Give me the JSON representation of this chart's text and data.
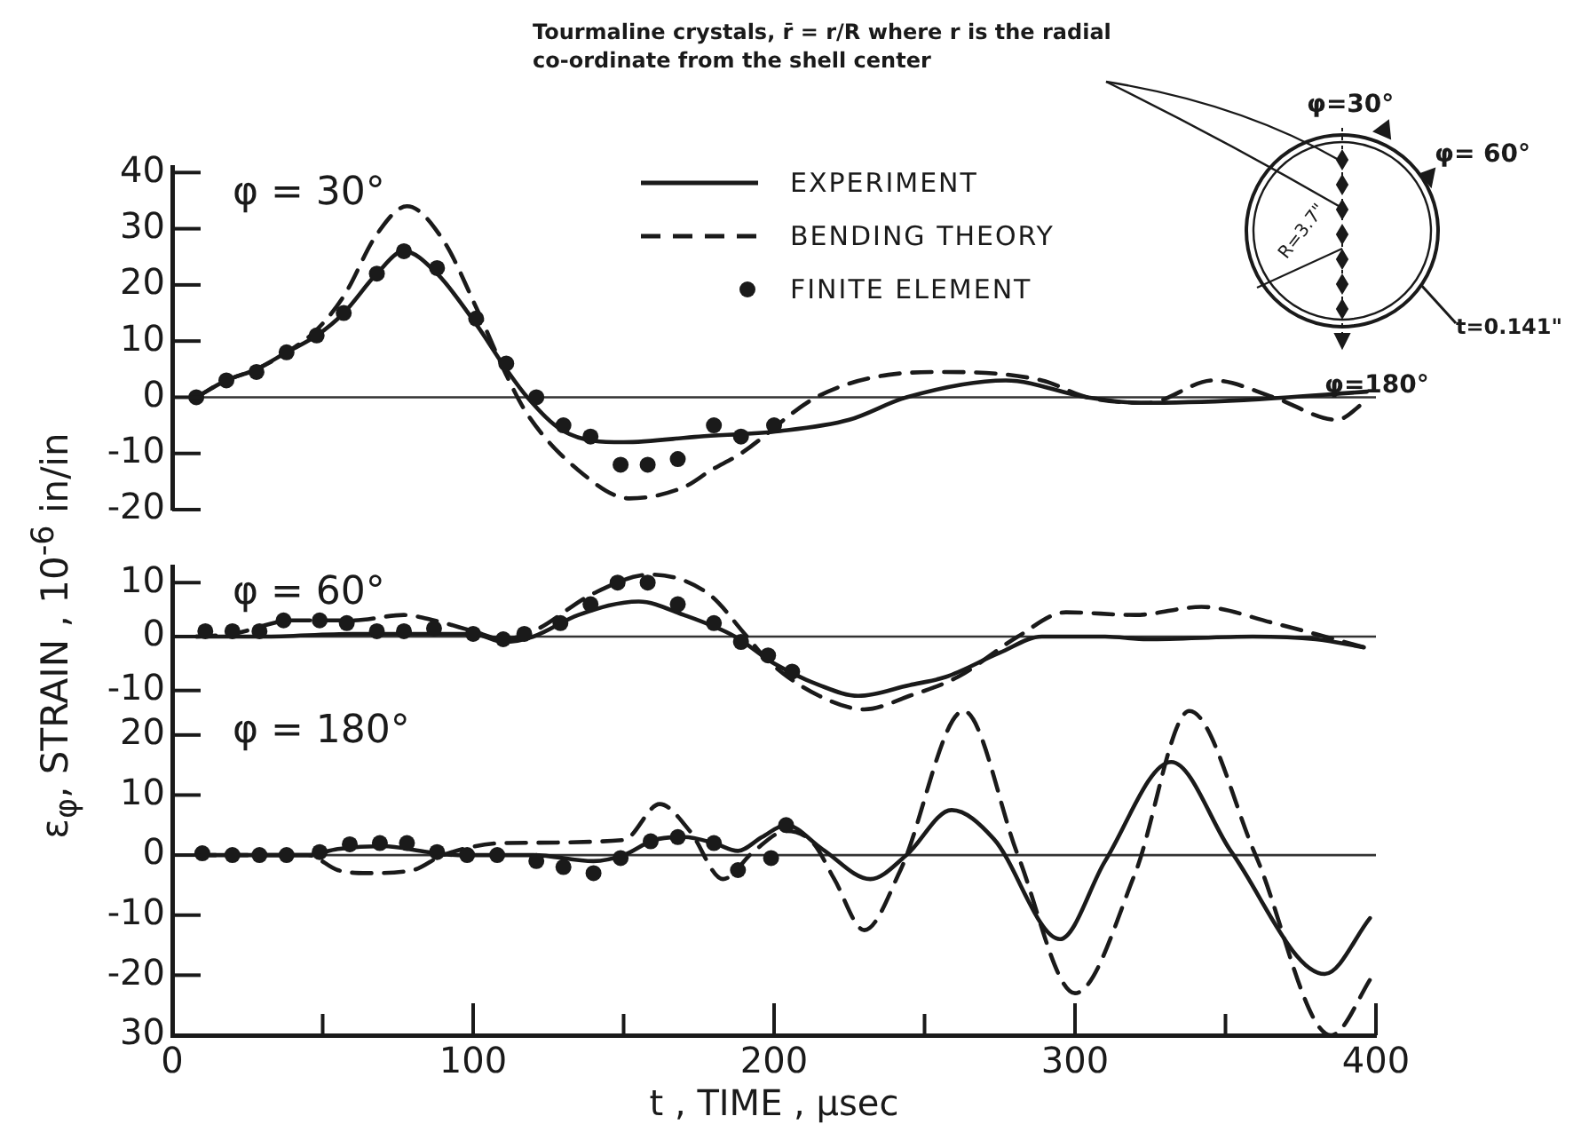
{
  "chart_data": [
    {
      "type": "line",
      "title": "φ = 30°",
      "xlim": [
        0,
        400
      ],
      "ylim": [
        -20,
        41
      ],
      "yticks": [
        40,
        30,
        20,
        10,
        0,
        -10,
        -20
      ],
      "tick_labels": "y",
      "legend": "top",
      "ref_lines": [
        {
          "axis": "y",
          "value": 0
        }
      ],
      "series": [
        {
          "name": "EXPERIMENT",
          "type": "line",
          "line_style": "solid",
          "color": "#1a1a1a",
          "x": [
            8,
            18,
            28,
            38,
            48,
            57,
            68,
            77,
            88,
            101,
            111,
            118,
            130,
            150,
            175,
            202,
            225,
            244,
            277,
            304,
            322,
            356,
            397
          ],
          "values": [
            0,
            3,
            5,
            8,
            11,
            15,
            22,
            26,
            22,
            13,
            5,
            0,
            -6,
            -8,
            -7,
            -6,
            -4,
            0,
            3,
            0,
            -1,
            -0.5,
            1
          ]
        },
        {
          "name": "BENDING THEORY",
          "type": "line",
          "line_style": "dashed",
          "color": "#1a1a1a",
          "x": [
            8,
            18,
            28,
            38,
            48,
            57,
            68,
            78,
            90,
            101,
            111,
            118,
            135,
            152,
            170,
            179,
            189,
            214,
            238,
            257,
            289,
            304,
            324,
            346,
            366,
            387,
            397
          ],
          "values": [
            0,
            3,
            5,
            8,
            12,
            18,
            29,
            34,
            28,
            16,
            4,
            -3,
            -13,
            -18,
            -16,
            -13,
            -10,
            0,
            4,
            4.5,
            3,
            0,
            -1,
            3,
            0,
            -4,
            -0.5
          ]
        },
        {
          "name": "FINITE ELEMENT",
          "type": "scatter",
          "marker": "circle",
          "color": "#1a1a1a",
          "x": [
            8,
            18,
            28,
            38,
            48,
            57,
            68,
            77,
            88,
            101,
            111,
            121,
            130,
            139,
            149,
            158,
            168,
            180,
            189,
            200
          ],
          "values": [
            0,
            3,
            4.5,
            8,
            11,
            15,
            22,
            26,
            23,
            14,
            6,
            0,
            -5,
            -7,
            -12,
            -12,
            -11,
            -5,
            -7,
            -5
          ]
        }
      ]
    },
    {
      "type": "line",
      "title": "φ = 60°",
      "ylabel": "ε$_{φ}$, STRAIN , 10$^{-6}$ in/in",
      "xlim": [
        0,
        400
      ],
      "ylim": [
        -14,
        13
      ],
      "yticks": [
        10,
        0,
        -10
      ],
      "tick_labels": "y",
      "ref_lines": [
        {
          "axis": "y",
          "value": 0
        }
      ],
      "series": [
        {
          "type": "line",
          "line_style": "solid",
          "color": "#1a1a1a",
          "x": [
            8,
            30,
            60,
            90,
            100,
            110,
            120,
            135,
            155,
            170,
            187,
            200,
            215,
            228,
            245,
            257,
            275,
            289,
            310,
            324,
            359,
            380,
            396
          ],
          "values": [
            0,
            0,
            0.5,
            0.5,
            0.5,
            -1,
            0,
            4,
            6.5,
            4,
            0,
            -5,
            -9,
            -11,
            -9,
            -7.5,
            -3,
            0,
            0,
            -0.5,
            0,
            -0.5,
            -2
          ]
        },
        {
          "type": "line",
          "line_style": "dashed",
          "color": "#1a1a1a",
          "x": [
            8,
            20,
            40,
            60,
            77,
            87,
            100,
            110,
            120,
            140,
            159,
            178,
            191,
            198,
            215,
            230,
            245,
            261,
            281,
            297,
            320,
            342,
            366,
            383,
            396
          ],
          "values": [
            0,
            0.5,
            3,
            3,
            4,
            3,
            1,
            -0.5,
            1,
            8,
            11.5,
            8,
            0,
            -4.5,
            -11,
            -13.5,
            -11,
            -7.5,
            0,
            4.5,
            4,
            5.5,
            2.5,
            0,
            -2
          ]
        },
        {
          "type": "scatter",
          "marker": "circle",
          "color": "#1a1a1a",
          "x": [
            11,
            20,
            29,
            37,
            49,
            58,
            68,
            77,
            87,
            100,
            110,
            117,
            129,
            139,
            148,
            158,
            168,
            180,
            189,
            198,
            206
          ],
          "values": [
            1,
            1,
            1,
            3,
            3,
            2.5,
            1,
            1,
            1.5,
            0.5,
            -0.5,
            0.5,
            2.5,
            6,
            10,
            10,
            6,
            2.5,
            -1,
            -3.5,
            -6.5
          ]
        }
      ]
    },
    {
      "type": "line",
      "title": "φ = 180°",
      "xlabel": "t , TIME , μsec",
      "xlim": [
        0,
        400
      ],
      "ylim": [
        -30,
        25
      ],
      "yticks": [
        20,
        10,
        0,
        -10,
        -20,
        {
          "value": -30,
          "label": "30"
        }
      ],
      "xticks": [
        0,
        {
          "value": 50,
          "label": null
        },
        100,
        {
          "value": 150,
          "label": null
        },
        200,
        {
          "value": 250,
          "label": null
        },
        300,
        {
          "value": 350,
          "label": null
        },
        400
      ],
      "ref_lines": [
        {
          "axis": "y",
          "value": 0
        }
      ],
      "series": [
        {
          "type": "line",
          "line_style": "solid",
          "color": "#1a1a1a",
          "x": [
            8,
            45,
            55,
            70,
            85,
            95,
            120,
            140,
            150,
            160,
            170,
            180,
            188,
            196,
            204,
            216,
            232,
            244,
            259,
            273,
            295,
            310,
            332,
            352,
            383,
            398
          ],
          "values": [
            0,
            0,
            1,
            1.5,
            0.5,
            0,
            0,
            -1,
            0,
            2.5,
            3,
            2,
            0.7,
            3,
            5,
            1,
            -4,
            0,
            7.5,
            2.7,
            -14,
            -1,
            15.5,
            0.5,
            -19.8,
            -10.5
          ]
        },
        {
          "type": "line",
          "line_style": "dashed",
          "color": "#1a1a1a",
          "x": [
            8,
            45,
            55,
            65,
            80,
            90,
            110,
            150,
            162,
            172,
            183,
            193,
            204,
            213,
            220,
            230,
            242,
            263,
            281,
            300,
            320,
            338,
            360,
            385,
            399
          ],
          "values": [
            0,
            0,
            -2.5,
            -3,
            -2.5,
            0,
            2,
            2.5,
            8.5,
            4,
            -4,
            0.5,
            4,
            2,
            -4,
            -12.5,
            -2.5,
            24,
            0,
            -23,
            -3,
            24,
            0,
            -30,
            -20
          ]
        },
        {
          "type": "scatter",
          "marker": "circle",
          "color": "#1a1a1a",
          "x": [
            10,
            20,
            29,
            38,
            49,
            59,
            69,
            78,
            88,
            98,
            108,
            121,
            130,
            140,
            149,
            159,
            168,
            180,
            188,
            199,
            204
          ],
          "values": [
            0.3,
            0,
            0,
            0,
            0.5,
            1.8,
            2,
            2,
            0.5,
            0,
            0,
            -1,
            -2,
            -3,
            -0.5,
            2.3,
            3,
            2,
            -2.5,
            -0.5,
            5
          ]
        }
      ]
    },
    {
      "type": "other",
      "annotations": [
        "Tourmaline crystals, r̄ = r/R where r is the radial co-ordinate from the shell center",
        "φ=30°",
        "φ= 60°",
        "R=3.7\"",
        "t=0.141\"",
        "φ=180°"
      ]
    }
  ]
}
